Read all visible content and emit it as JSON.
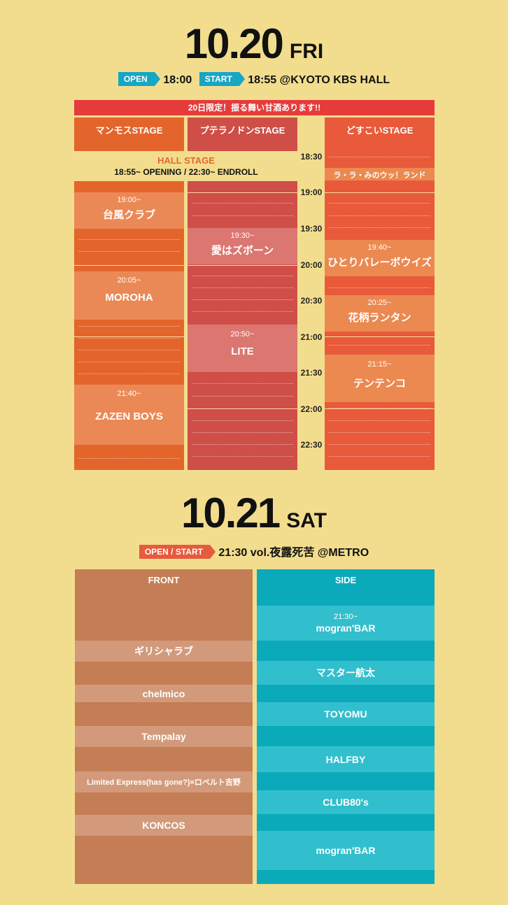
{
  "day1": {
    "date": "10.20",
    "dow": "FRI",
    "open_tag": "OPEN",
    "open_time": "18:00",
    "start_tag": "START",
    "start_time": "18:55",
    "venue": "@KYOTO KBS HALL",
    "banner": "20日限定！振る舞い甘酒あります!!",
    "stages": {
      "mammoth": {
        "name": "マンモスSTAGE",
        "color": "#e4652c",
        "acts": [
          {
            "time": "19:00~",
            "name": "台風クラブ"
          },
          {
            "time": "20:05~",
            "name": "MOROHA"
          },
          {
            "time": "21:40~",
            "name": "ZAZEN BOYS"
          }
        ]
      },
      "pteranodon": {
        "name": "プテラノドンSTAGE",
        "color": "#cf4e48",
        "acts": [
          {
            "time": "19:30~",
            "name": "愛はズボーン"
          },
          {
            "time": "20:50~",
            "name": "LITE"
          }
        ]
      },
      "dosukoi": {
        "name": "どすこいSTAGE",
        "color": "#e85a3a",
        "acts": [
          {
            "time": "",
            "name": "ラ・ラ・みのウッ！ランド"
          },
          {
            "time": "19:40~",
            "name": "ひとりバレーボウイズ"
          },
          {
            "time": "20:25~",
            "name": "花柄ランタン"
          },
          {
            "time": "21:15~",
            "name": "テンテンコ"
          }
        ]
      }
    },
    "hall": {
      "title": "HALL STAGE",
      "detail": "18:55~ OPENING / 22:30~ ENDROLL"
    },
    "times": [
      "18:30",
      "19:00",
      "19:30",
      "20:00",
      "20:30",
      "21:00",
      "21:30",
      "22:00",
      "22:30"
    ]
  },
  "day2": {
    "date": "10.21",
    "dow": "SAT",
    "tag": "OPEN / START",
    "info": "21:30 vol.夜露死苦 @METRO",
    "front": {
      "name": "FRONT",
      "color": "#c47d55",
      "acts": [
        "ギリシャラブ",
        "chelmico",
        "Tempalay",
        "Limited Express(has gone?)×ロベルト吉野",
        "KONCOS"
      ]
    },
    "side": {
      "name": "SIDE",
      "color": "#0aaabb",
      "first_time": "21:30~",
      "acts": [
        "mogran'BAR",
        "マスター航太",
        "TOYOMU",
        "HALFBY",
        "CLUB80's",
        "mogran'BAR"
      ]
    }
  }
}
